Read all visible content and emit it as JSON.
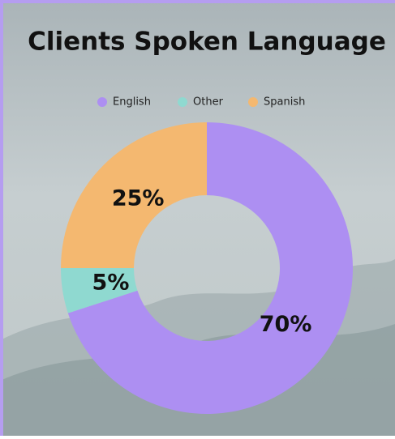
{
  "chart_data": {
    "type": "donut",
    "title": "Clients Spoken Language",
    "categories": [
      "English",
      "Other",
      "Spanish"
    ],
    "values": [
      70,
      5,
      25
    ],
    "value_labels": [
      "70%",
      "5%",
      "25%"
    ],
    "colors": [
      "#ad8ff2",
      "#8fd9d0",
      "#f4b870"
    ],
    "legend": "top"
  }
}
